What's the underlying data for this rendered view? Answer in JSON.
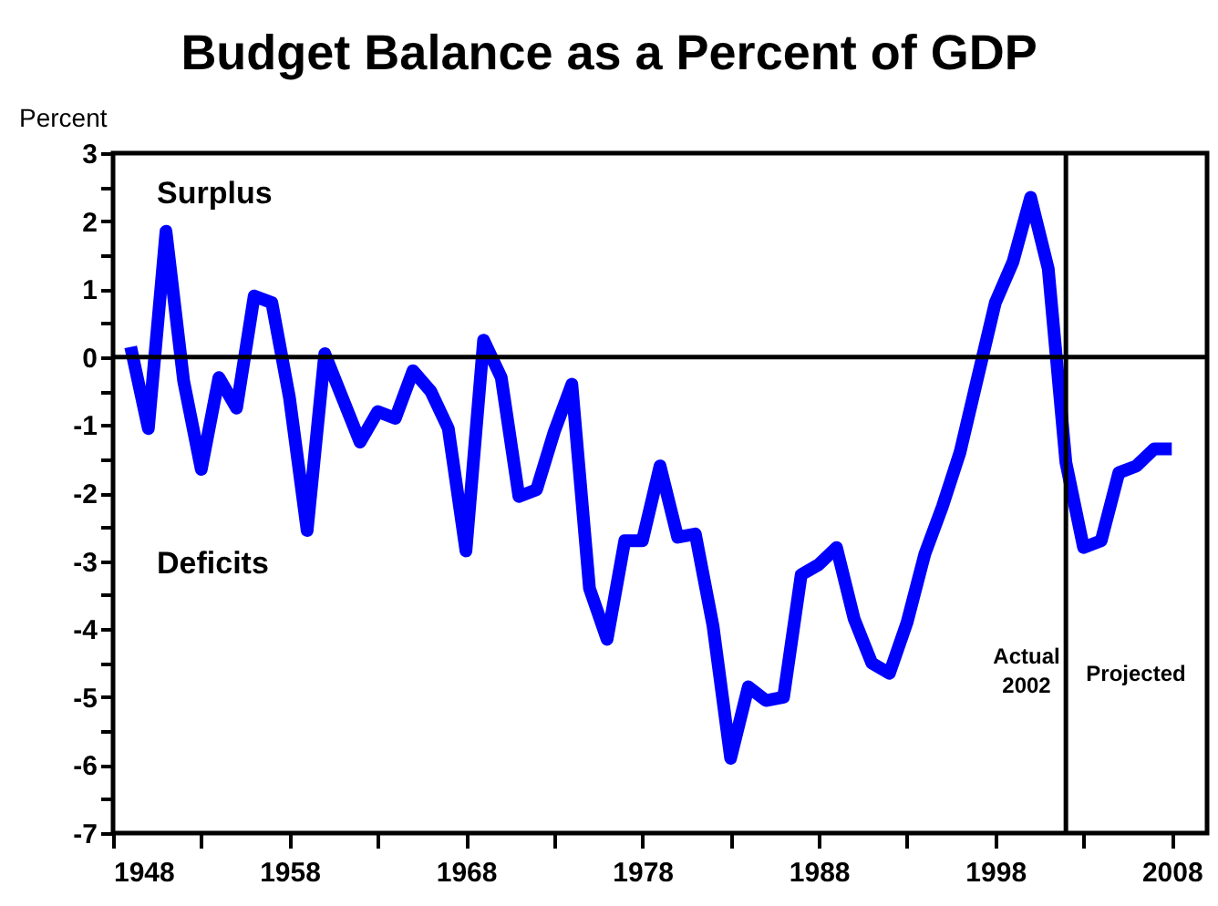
{
  "chart_data": {
    "type": "line",
    "title": "Budget Balance as a Percent of GDP",
    "ylabel": "Percent",
    "x": [
      1949,
      1950,
      1951,
      1952,
      1953,
      1954,
      1955,
      1956,
      1957,
      1958,
      1959,
      1960,
      1961,
      1962,
      1963,
      1964,
      1965,
      1966,
      1967,
      1968,
      1969,
      1970,
      1971,
      1972,
      1973,
      1974,
      1975,
      1976,
      1977,
      1978,
      1979,
      1980,
      1981,
      1982,
      1983,
      1984,
      1985,
      1986,
      1987,
      1988,
      1989,
      1990,
      1991,
      1992,
      1993,
      1994,
      1995,
      1996,
      1997,
      1998,
      1999,
      2000,
      2001,
      2002,
      2003,
      2004,
      2005,
      2006,
      2007,
      2008
    ],
    "series": [
      {
        "color": "#0000ff",
        "values": [
          0.15,
          -1.05,
          1.85,
          -0.35,
          -1.65,
          -0.3,
          -0.75,
          0.9,
          0.8,
          -0.6,
          -2.55,
          0.05,
          -0.6,
          -1.25,
          -0.8,
          -0.9,
          -0.2,
          -0.5,
          -1.05,
          -2.85,
          0.25,
          -0.3,
          -2.05,
          -1.95,
          -1.1,
          -0.4,
          -3.4,
          -4.15,
          -2.7,
          -2.7,
          -1.6,
          -2.65,
          -2.6,
          -3.95,
          -5.9,
          -4.85,
          -5.05,
          -5.0,
          -3.2,
          -3.05,
          -2.8,
          -3.85,
          -4.5,
          -4.65,
          -3.9,
          -2.9,
          -2.2,
          -1.4,
          -0.3,
          0.8,
          1.4,
          2.35,
          1.3,
          -1.55,
          -2.8,
          -2.7,
          -1.7,
          -1.6,
          -1.35,
          -1.35
        ]
      }
    ],
    "xlim": [
      1948,
      2010
    ],
    "xticks": [
      1948,
      {
        "value": 1953,
        "label": null
      },
      1958,
      {
        "value": 1963,
        "label": null
      },
      1968,
      {
        "value": 1973,
        "label": null
      },
      1978,
      {
        "value": 1983,
        "label": null
      },
      1988,
      {
        "value": 1993,
        "label": null
      },
      1998,
      {
        "value": 2003,
        "label": null
      },
      2008
    ],
    "ylim": [
      -7,
      3
    ],
    "yticks": [
      -7,
      {
        "value": -6.5,
        "label": null
      },
      -6,
      {
        "value": -5.5,
        "label": null
      },
      -5,
      {
        "value": -4.5,
        "label": null
      },
      -4,
      {
        "value": -3.5,
        "label": null
      },
      -3,
      {
        "value": -2.5,
        "label": null
      },
      -2,
      {
        "value": -1.5,
        "label": null
      },
      -1,
      {
        "value": -0.5,
        "label": null
      },
      0,
      {
        "value": 0.5,
        "label": null
      },
      1,
      {
        "value": 1.5,
        "label": null
      },
      2,
      {
        "value": 2.5,
        "label": null
      },
      3
    ],
    "ref_lines": [
      {
        "axis": "y",
        "value": 0,
        "color": "#000000"
      },
      {
        "axis": "x",
        "value": 2002,
        "color": "#000000"
      }
    ],
    "annotations": [
      "Surplus",
      "Deficits",
      "Actual 2002",
      "Projected"
    ],
    "grid": false,
    "marker": "none",
    "line_style": "solid"
  }
}
